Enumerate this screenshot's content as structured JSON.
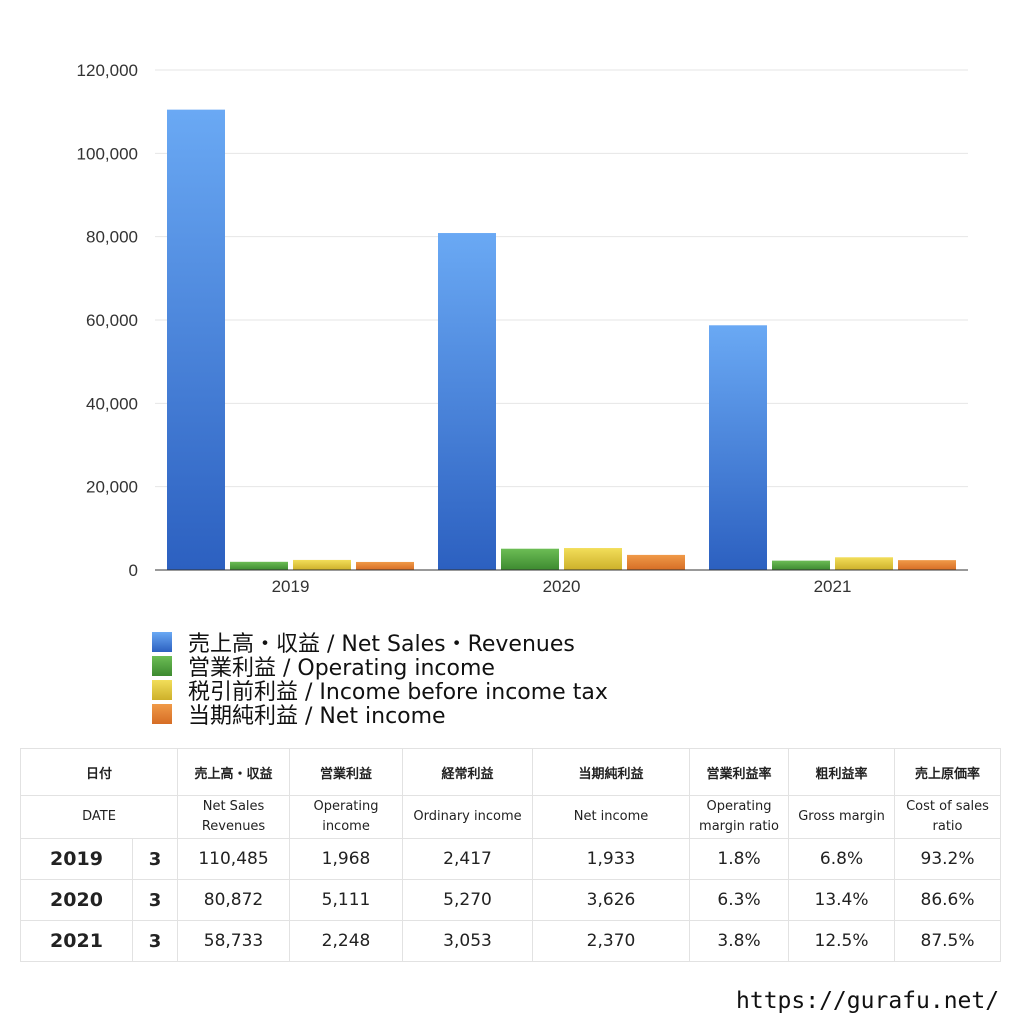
{
  "chart_data": {
    "type": "bar",
    "categories": [
      "2019",
      "2020",
      "2021"
    ],
    "series": [
      {
        "name": "売上高・収益 / Net Sales・Revenues",
        "values": [
          110485,
          80872,
          58733
        ],
        "color": "#3a78d6"
      },
      {
        "name": "営業利益 / Operating income",
        "values": [
          1968,
          5111,
          2248
        ],
        "color": "#4f9e3f"
      },
      {
        "name": "税引前利益 / Income before income tax",
        "values": [
          2417,
          5270,
          3053
        ],
        "color": "#e0c535"
      },
      {
        "name": "当期純利益 / Net income",
        "values": [
          1933,
          3626,
          2370
        ],
        "color": "#df7d2f"
      }
    ],
    "ylim": [
      0,
      120000
    ],
    "yticks": [
      "0",
      "20,000",
      "40,000",
      "60,000",
      "80,000",
      "100,000",
      "120,000"
    ],
    "grid": true,
    "legend_position": "bottom-left"
  },
  "table": {
    "headers_ja": [
      "日付",
      "売上高・収益",
      "営業利益",
      "経常利益",
      "当期純利益",
      "営業利益率",
      "粗利益率",
      "売上原価率"
    ],
    "headers_en": [
      "DATE",
      "Net Sales Revenues",
      "Operating income",
      "Ordinary income",
      "Net income",
      "Operating margin ratio",
      "Gross margin",
      "Cost of sales ratio"
    ],
    "rows": [
      {
        "year": "2019",
        "month": "3",
        "cells": [
          "110,485",
          "1,968",
          "2,417",
          "1,933",
          "1.8%",
          "6.8%",
          "93.2%"
        ]
      },
      {
        "year": "2020",
        "month": "3",
        "cells": [
          "80,872",
          "5,111",
          "5,270",
          "3,626",
          "6.3%",
          "13.4%",
          "86.6%"
        ]
      },
      {
        "year": "2021",
        "month": "3",
        "cells": [
          "58,733",
          "2,248",
          "3,053",
          "2,370",
          "3.8%",
          "12.5%",
          "87.5%"
        ]
      }
    ]
  },
  "footer": {
    "url": "https://gurafu.net/"
  }
}
